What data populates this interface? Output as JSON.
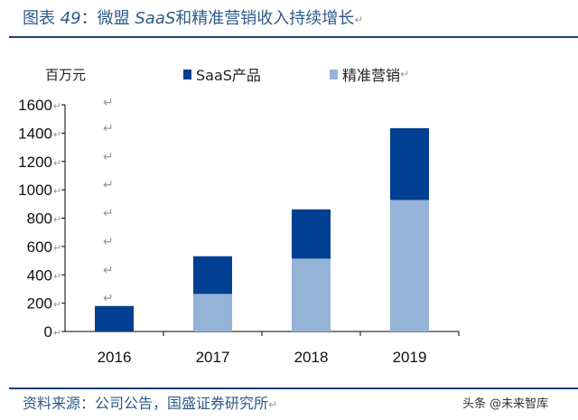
{
  "title": {
    "prefix": "图表 ",
    "number": "49",
    "sep": "：微盟 ",
    "saas": "SaaS",
    "rest": "和精准营销收入持续增长"
  },
  "source": "资料来源：公司公告，国盛证券研究所",
  "watermark": "头条 @未来智库",
  "chart_data": {
    "type": "bar",
    "stacked": true,
    "unit_label": "百万元",
    "categories": [
      "2016",
      "2017",
      "2018",
      "2019"
    ],
    "series": [
      {
        "name": "精准营销",
        "color": "#95b3d7",
        "values": [
          0,
          265,
          514,
          928
        ]
      },
      {
        "name": "SaaS产品",
        "color": "#003f91",
        "values": [
          180,
          266,
          348,
          507
        ]
      }
    ],
    "ylim": [
      0,
      1600
    ],
    "yticks": [
      0,
      200,
      400,
      600,
      800,
      1000,
      1200,
      1400,
      1600
    ],
    "grid": false,
    "legend": "top"
  }
}
